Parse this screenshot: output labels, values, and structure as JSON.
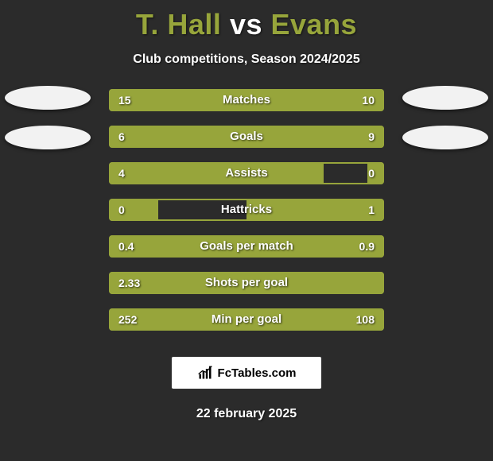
{
  "colors": {
    "background": "#2b2b2b",
    "title_player": "#97a53b",
    "title_vs": "#ffffff",
    "bar_fill": "#97a53b",
    "bar_border": "#97a53b",
    "row_bg": "#2b2b2b",
    "avatar": "#f2f2f2",
    "text": "#ffffff"
  },
  "title": {
    "left": "T. Hall",
    "vs": "vs",
    "right": "Evans"
  },
  "subtitle": "Club competitions, Season 2024/2025",
  "stats": [
    {
      "label": "Matches",
      "left_text": "15",
      "right_text": "10",
      "left_pct": 60,
      "right_pct": 40
    },
    {
      "label": "Goals",
      "left_text": "6",
      "right_text": "9",
      "left_pct": 40,
      "right_pct": 60
    },
    {
      "label": "Assists",
      "left_text": "4",
      "right_text": "0",
      "left_pct": 78,
      "right_pct": 6
    },
    {
      "label": "Hattricks",
      "left_text": "0",
      "right_text": "1",
      "left_pct": 18,
      "right_pct": 50
    },
    {
      "label": "Goals per match",
      "left_text": "0.4",
      "right_text": "0.9",
      "left_pct": 31,
      "right_pct": 69
    },
    {
      "label": "Shots per goal",
      "left_text": "2.33",
      "right_text": "",
      "left_pct": 100,
      "right_pct": 0
    },
    {
      "label": "Min per goal",
      "left_text": "252",
      "right_text": "108",
      "left_pct": 70,
      "right_pct": 30
    }
  ],
  "brand": "FcTables.com",
  "date": "22 february 2025"
}
